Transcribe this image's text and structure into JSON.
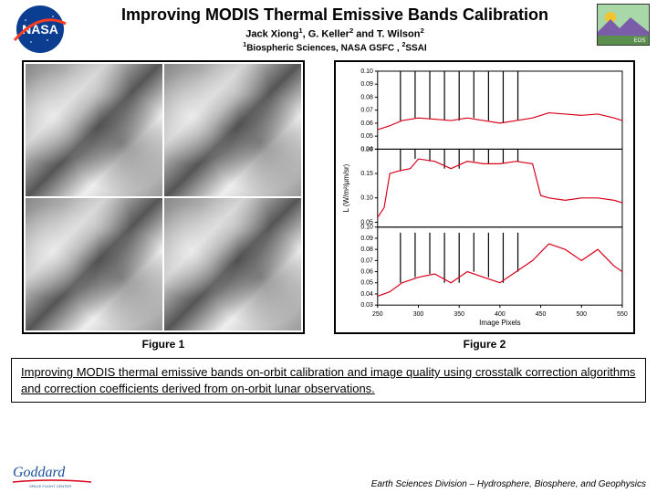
{
  "header": {
    "title": "Improving MODIS Thermal Emissive Bands Calibration",
    "authors_html": "Jack Xiong<sup>1</sup>, G. Keller<sup>2</sup> and T. Wilson<sup>2</sup>",
    "affil_html": "<sup>1</sup>Biospheric Sciences, NASA GSFC , <sup>2</sup>SSAI",
    "nasa_colors": {
      "circle": "#0b3d91",
      "swoosh": "#fc3d21",
      "text": "#ffffff"
    },
    "eos_colors": {
      "bg": "#5b8f4e",
      "mtn": "#7b5ca8",
      "sun": "#f4c430",
      "border": "#222"
    }
  },
  "figure1": {
    "caption": "Figure 1",
    "grid": [
      2,
      2
    ],
    "tiles_desc": "MODIS thermal band satellite imagery quadrants (grayscale cloud/surface scenes)"
  },
  "figure2": {
    "caption": "Figure 2",
    "xlabel": "Image Pixels",
    "ylabel": "L (W/m²/µm/sr)",
    "x_range": [
      250,
      550
    ],
    "x_ticks": [
      250,
      300,
      350,
      400,
      450,
      500,
      550
    ],
    "panels": [
      {
        "ylim": [
          0.04,
          0.1
        ],
        "yticks": [
          0.04,
          0.05,
          0.06,
          0.07,
          0.08,
          0.09,
          0.1
        ],
        "red_line_color": "#d9001b",
        "black_spike_color": "#000000",
        "baseline_approx": 0.063,
        "spike_peaks_y": 0.1,
        "spike_x_positions": [
          278,
          296,
          314,
          332,
          350,
          368,
          386,
          404,
          422
        ],
        "red_points": [
          [
            250,
            0.055
          ],
          [
            265,
            0.058
          ],
          [
            280,
            0.062
          ],
          [
            300,
            0.064
          ],
          [
            320,
            0.063
          ],
          [
            340,
            0.062
          ],
          [
            360,
            0.064
          ],
          [
            380,
            0.062
          ],
          [
            400,
            0.06
          ],
          [
            420,
            0.062
          ],
          [
            440,
            0.064
          ],
          [
            460,
            0.068
          ],
          [
            480,
            0.067
          ],
          [
            500,
            0.066
          ],
          [
            520,
            0.067
          ],
          [
            540,
            0.064
          ],
          [
            550,
            0.062
          ]
        ]
      },
      {
        "ylim": [
          0.04,
          0.2
        ],
        "yticks": [
          0.05,
          0.1,
          0.15,
          0.2
        ],
        "red_line_color": "#d9001b",
        "black_spike_color": "#000000",
        "spike_x_positions": [
          278,
          296,
          314,
          332,
          350,
          368,
          386,
          404,
          422
        ],
        "spike_peaks_y": 0.2,
        "red_points": [
          [
            250,
            0.06
          ],
          [
            258,
            0.08
          ],
          [
            265,
            0.15
          ],
          [
            275,
            0.155
          ],
          [
            290,
            0.16
          ],
          [
            300,
            0.18
          ],
          [
            320,
            0.175
          ],
          [
            340,
            0.16
          ],
          [
            360,
            0.175
          ],
          [
            380,
            0.17
          ],
          [
            400,
            0.17
          ],
          [
            420,
            0.175
          ],
          [
            440,
            0.17
          ],
          [
            450,
            0.105
          ],
          [
            460,
            0.1
          ],
          [
            480,
            0.095
          ],
          [
            500,
            0.1
          ],
          [
            520,
            0.1
          ],
          [
            540,
            0.095
          ],
          [
            550,
            0.09
          ]
        ]
      },
      {
        "ylim": [
          0.03,
          0.1
        ],
        "yticks": [
          0.03,
          0.04,
          0.05,
          0.06,
          0.07,
          0.08,
          0.09,
          0.1
        ],
        "red_line_color": "#d9001b",
        "black_spike_color": "#000000",
        "spike_x_positions": [
          278,
          296,
          314,
          332,
          350,
          368,
          386,
          404,
          422
        ],
        "spike_peaks_y": 0.095,
        "red_points": [
          [
            250,
            0.038
          ],
          [
            265,
            0.042
          ],
          [
            280,
            0.05
          ],
          [
            300,
            0.055
          ],
          [
            320,
            0.058
          ],
          [
            340,
            0.05
          ],
          [
            360,
            0.06
          ],
          [
            380,
            0.055
          ],
          [
            400,
            0.05
          ],
          [
            420,
            0.06
          ],
          [
            440,
            0.07
          ],
          [
            460,
            0.085
          ],
          [
            480,
            0.08
          ],
          [
            500,
            0.07
          ],
          [
            520,
            0.08
          ],
          [
            540,
            0.065
          ],
          [
            550,
            0.06
          ]
        ]
      }
    ],
    "background_color": "#ffffff",
    "axis_color": "#000000",
    "label_fontsize": 8,
    "tick_fontsize": 7
  },
  "description": "Improving MODIS thermal emissive bands on-orbit calibration and image quality using crosstalk correction algorithms and correction coefficients derived from on-orbit lunar observations.",
  "footer": {
    "goddard_colors": {
      "text": "#1b4f9c",
      "swoosh": "#d9001b"
    },
    "division_text": "Earth Sciences Division – Hydrosphere, Biosphere, and Geophysics"
  }
}
